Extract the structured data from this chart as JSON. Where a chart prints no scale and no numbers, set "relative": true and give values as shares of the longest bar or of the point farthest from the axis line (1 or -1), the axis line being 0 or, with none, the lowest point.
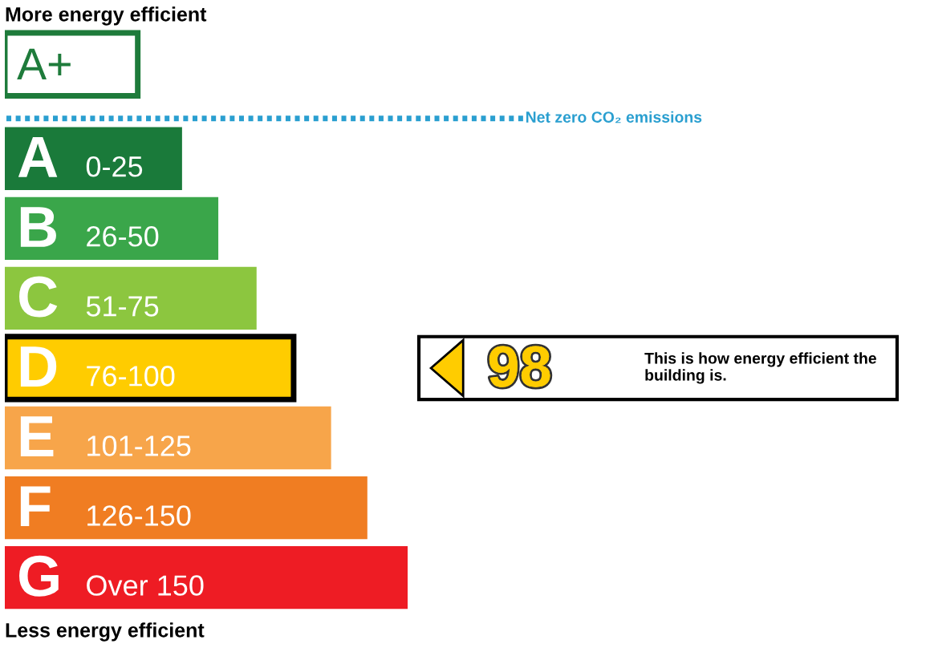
{
  "chart_data": {
    "type": "bar",
    "orientation": "horizontal",
    "relative": true,
    "title": "More energy efficient",
    "categories": [
      "A+",
      "A 0-25",
      "B 26-50",
      "C 51-75",
      "D 76-100",
      "E 101-125",
      "F 126-150",
      "G Over 150"
    ],
    "values": [
      0.33,
      0.44,
      0.53,
      0.625,
      0.717,
      0.81,
      0.9,
      1
    ],
    "colors": [
      "#1e7b3b",
      "#1a7a3a",
      "#3aa64a",
      "#8cc63f",
      "#ffcc00",
      "#f7a54a",
      "#f07d22",
      "#ee1c24"
    ],
    "annotations": [
      "Net zero CO₂ emissions",
      "98",
      "This is how energy efficient the building is.",
      "Less energy efficient"
    ]
  }
}
